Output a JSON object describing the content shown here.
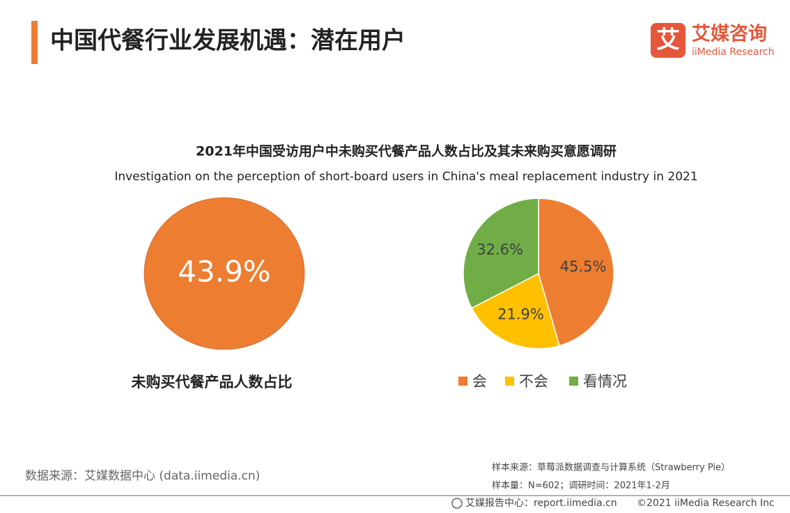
{
  "header": {
    "title": "中国代餐行业发展机遇：潜在用户"
  },
  "logo": {
    "icon": "艾",
    "name": "艾媒咨询",
    "english": "iiMedia Research"
  },
  "figure": {
    "title": "2021年中国受访用户中未购买代餐产品人数占比及其未来购买意愿调研",
    "subtitle": "Investigation on the perception of short-board users in China's meal replacement industry in 2021"
  },
  "chart_data": [
    {
      "type": "circle",
      "categories": [
        "未购买代餐产品人数占比"
      ],
      "values": [
        43.9
      ],
      "value_labels": [
        "43.9%"
      ],
      "color": "#ED7D31"
    },
    {
      "type": "pie",
      "categories": [
        "会",
        "不会",
        "看情况"
      ],
      "values": [
        45.5,
        21.9,
        32.6
      ],
      "value_labels": [
        "45.5%",
        "21.9%",
        "32.6%"
      ],
      "colors": [
        "#ED7D31",
        "#FFC000",
        "#70AD47"
      ],
      "legend": "bottom"
    }
  ],
  "footer": {
    "source": "数据来源：艾媒数据中心 (data.iimedia.cn)",
    "sample_source": "样本来源：草莓派数据调查与计算系统（Strawberry Pie）",
    "sample_size": "样本量：N=602；调研时间：2021年1-2月",
    "report_center": "艾媒报告中心：report.iimedia.cn",
    "copyright": "©2021  iiMedia Research  Inc"
  }
}
